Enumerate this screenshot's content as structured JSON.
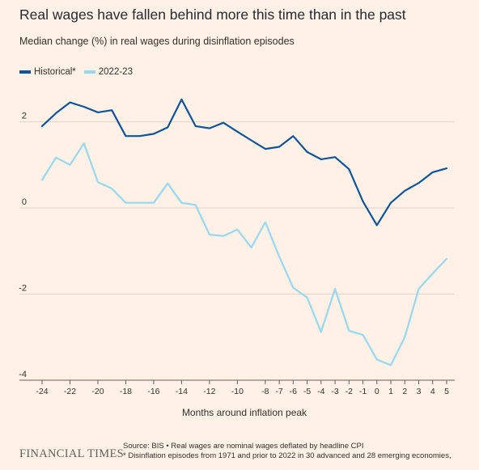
{
  "title": "Real wages have fallen behind more this time than in the past",
  "subtitle": "Median change (%) in real wages during disinflation episodes",
  "legend": [
    {
      "label": "Historical*",
      "color": "#0f5499"
    },
    {
      "label": "2022-23",
      "color": "#99d7f0"
    }
  ],
  "footer": {
    "logo": "FINANCIAL TIMES",
    "source": "Source: BIS • Real wages are nominal wages deflated by headline CPI",
    "note": "* Disinflation episodes from 1971 and prior to 2022 in 30 advanced and 28 emerging economies,"
  },
  "chart_data": {
    "type": "line",
    "xlabel": "Months around inflation peak",
    "ylabel": "",
    "xlim": [
      -24,
      5
    ],
    "ylim": [
      -4,
      2.8
    ],
    "yticks": [
      2,
      0,
      -2,
      -4
    ],
    "xticks": [
      -24,
      -22,
      -20,
      -18,
      -16,
      -14,
      -12,
      -10,
      -8,
      -7,
      -6,
      -5,
      -4,
      -3,
      -2,
      -1,
      0,
      1,
      2,
      3,
      4,
      5
    ],
    "grid": true,
    "x": [
      -24,
      -23,
      -22,
      -21,
      -20,
      -19,
      -18,
      -17,
      -16,
      -15,
      -14,
      -13,
      -12,
      -11,
      -10,
      -9,
      -8,
      -7,
      -6,
      -5,
      -4,
      -3,
      -2,
      -1,
      0,
      1,
      2,
      3,
      4,
      5
    ],
    "series": [
      {
        "name": "Historical*",
        "color": "#0f5499",
        "values": [
          1.9,
          2.2,
          2.45,
          2.35,
          2.22,
          2.27,
          1.67,
          1.67,
          1.72,
          1.87,
          2.52,
          1.9,
          1.85,
          1.98,
          1.77,
          1.57,
          1.37,
          1.42,
          1.67,
          1.3,
          1.13,
          1.18,
          0.9,
          0.15,
          -0.4,
          0.12,
          0.4,
          0.58,
          0.83,
          0.92
        ]
      },
      {
        "name": "2022-23",
        "color": "#99d7f0",
        "values": [
          0.65,
          1.17,
          1.0,
          1.5,
          0.6,
          0.45,
          0.12,
          0.12,
          0.12,
          0.57,
          0.12,
          0.07,
          -0.62,
          -0.65,
          -0.5,
          -0.92,
          -0.33,
          -1.13,
          -1.85,
          -2.08,
          -2.88,
          -1.88,
          -2.85,
          -2.95,
          -3.52,
          -3.65,
          -3.0,
          -1.88,
          -1.52,
          -1.18
        ]
      }
    ]
  }
}
